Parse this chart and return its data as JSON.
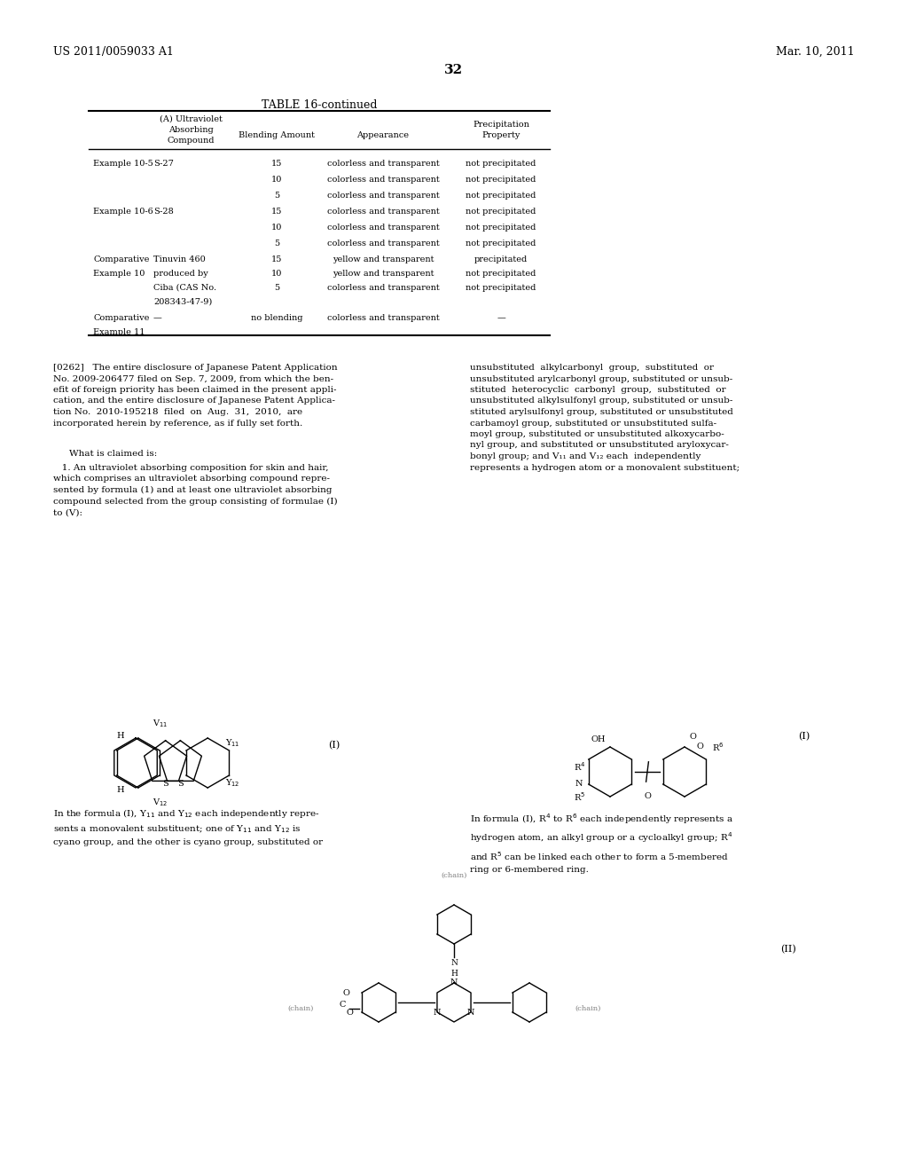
{
  "page_header_left": "US 2011/0059033 A1",
  "page_header_right": "Mar. 10, 2011",
  "page_number": "32",
  "table_title": "TABLE 16-continued",
  "table_headers": [
    "",
    "(A) Ultraviolet\nAbsorbing\nCompound",
    "Blending Amount",
    "Appearance",
    "Precipitation\nProperty"
  ],
  "table_rows": [
    [
      "Example 10-5",
      "S-27",
      "15",
      "colorless and transparent",
      "not precipitated"
    ],
    [
      "",
      "",
      "10",
      "colorless and transparent",
      "not precipitated"
    ],
    [
      "",
      "",
      "5",
      "colorless and transparent",
      "not precipitated"
    ],
    [
      "Example 10-6",
      "S-28",
      "15",
      "colorless and transparent",
      "not precipitated"
    ],
    [
      "",
      "",
      "10",
      "colorless and transparent",
      "not precipitated"
    ],
    [
      "",
      "",
      "5",
      "colorless and transparent",
      "not precipitated"
    ],
    [
      "Comparative",
      "Tinuvin 460",
      "15",
      "yellow and transparent",
      "precipitated"
    ],
    [
      "Example 10",
      "produced by",
      "10",
      "yellow and transparent",
      "not precipitated"
    ],
    [
      "",
      "Ciba (CAS No.",
      "5",
      "colorless and transparent",
      "not precipitated"
    ],
    [
      "",
      "208343-47-9)",
      "",
      "",
      ""
    ],
    [
      "Comparative",
      "—",
      "no blending",
      "colorless and transparent",
      "—"
    ],
    [
      "Example 11",
      "",
      "",
      "",
      ""
    ]
  ],
  "paragraph_0262": "[0262]   The entire disclosure of Japanese Patent Application No. 2009-206477 filed on Sep. 7, 2009, from which the benefit of foreign priority has been claimed in the present application, and the entire disclosure of Japanese Patent Application No. 2010-195218 filed on Aug. 31, 2010, are incorporated herein by reference, as if fully set forth.",
  "what_claimed": "What is claimed is:",
  "claim_1": "1. An ultraviolet absorbing composition for skin and hair, which comprises an ultraviolet absorbing compound represented by formula (1) and at least one ultraviolet absorbing compound selected from the group consisting of formulae (I) to (V):",
  "right_col_text": "unsubstituted alkylcarbonyl group, substituted or unsubstituted arylcarbonyl group, substituted or unsubstituted heterocyclic carbonyl group, substituted or unsubstituted alkylsulfonyl group, substituted or unsubstituted arylsulfonyl group, substituted or unsubstituted carbamoyl group, substituted or unsubstituted sulfamoyl group, substituted or unsubstituted alkoxycarbonyl group, and substituted or unsubstituted aryloxycarbonyl group; and V₁₁ and V₁₂ each independently represents a hydrogen atom or a monovalent substituent;",
  "formula_I_label_left": "(I)",
  "formula_I_label_right": "(I)",
  "formula_II_label": "(II)",
  "left_caption": "In the formula (I), Y₁₁ and Y₁₂ each independently represents a monovalent substituent; one of Y₁₁ and Y₁₂ is cyano group, and the other is cyano group, substituted or",
  "right_caption": "In formula (I), R⁴ to R⁶ each independently represents a hydrogen atom, an alkyl group or a cycloalkyl group; R⁴ and R⁵ can be linked each other to form a 5-membered ring or 6-membered ring.",
  "bg_color": "#ffffff",
  "text_color": "#000000",
  "font_size_header": 9,
  "font_size_body": 7.5,
  "font_size_table": 7,
  "font_family": "serif"
}
